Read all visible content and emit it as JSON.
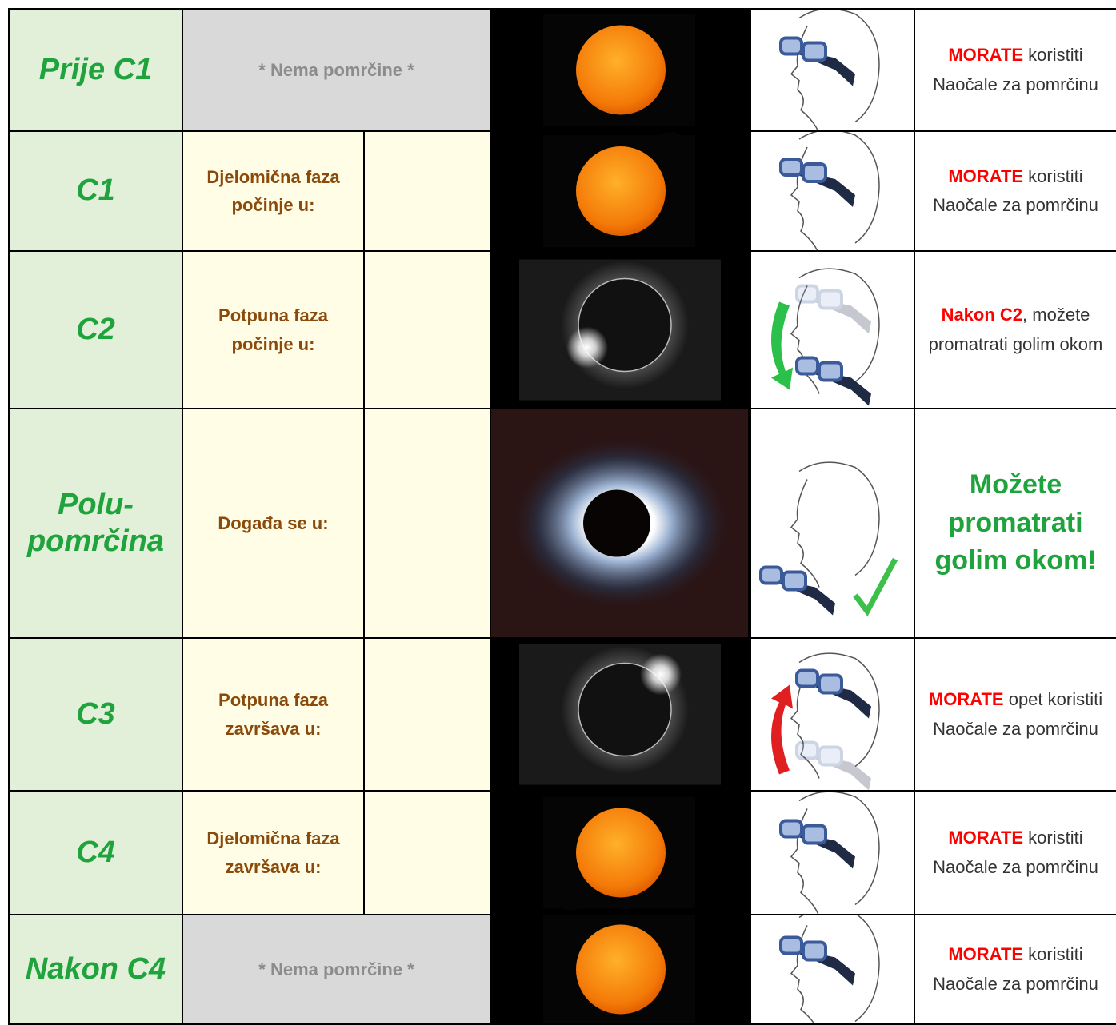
{
  "table": {
    "rows": [
      {
        "phase": "Prije C1",
        "description": "* Nema pomrčine *",
        "instruction": {
          "emphasis": "MORATE",
          "text": " koristiti Naočale za pomrčinu"
        }
      },
      {
        "phase": "C1",
        "description": "Djelomična faza počinje u:",
        "instruction": {
          "emphasis": "MORATE",
          "text": " koristiti Naočale za pomrčinu"
        }
      },
      {
        "phase": "C2",
        "description": "Potpuna faza počinje u:",
        "instruction": {
          "emphasis": "Nakon C2",
          "text": ", možete promatrati golim okom"
        }
      },
      {
        "phase": "Polu-pomrčina",
        "description": "Događa se u:",
        "instruction": {
          "highlight": "Možete promatrati golim okom!"
        }
      },
      {
        "phase": "C3",
        "description": "Potpuna faza završava u:",
        "instruction": {
          "emphasis": "MORATE",
          "text": " opet koristiti Naočale za pomrčinu"
        }
      },
      {
        "phase": "C4",
        "description": "Djelomična faza završava u:",
        "instruction": {
          "emphasis": "MORATE",
          "text": " koristiti Naočale za pomrčinu"
        }
      },
      {
        "phase": "Nakon C4",
        "description": "* Nema pomrčine *",
        "instruction": {
          "emphasis": "MORATE",
          "text": " koristiti Naočale za pomrčinu"
        }
      }
    ]
  }
}
